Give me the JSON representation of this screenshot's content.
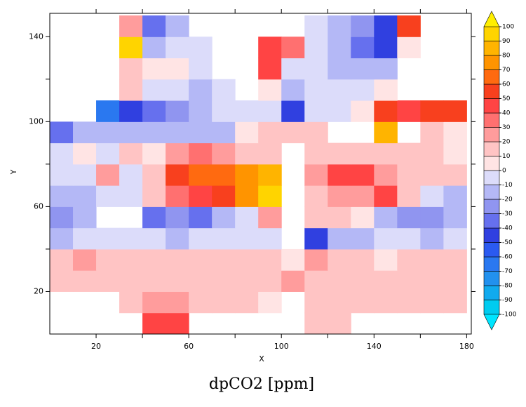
{
  "chart_data": {
    "type": "heatmap",
    "title": "dpCO2 [ppm]",
    "xlabel": "X",
    "ylabel": "Y",
    "xlim": [
      0,
      182
    ],
    "ylim": [
      0,
      151
    ],
    "xticks": [
      20,
      60,
      100,
      140,
      180
    ],
    "xminor_ticks": [
      40,
      80,
      120,
      160
    ],
    "yticks": [
      20,
      60,
      100,
      140
    ],
    "yminor_ticks": [
      40,
      80,
      120
    ],
    "x_edges": [
      0,
      10,
      20,
      30,
      40,
      50,
      60,
      70,
      80,
      90,
      100,
      110,
      120,
      130,
      140,
      150,
      160,
      170,
      180
    ],
    "y_edges": [
      0,
      10,
      20,
      30,
      40,
      50,
      60,
      70,
      80,
      90,
      100,
      110,
      120,
      130,
      140,
      150
    ],
    "values": [
      [
        null,
        null,
        null,
        null,
        40,
        40,
        null,
        null,
        null,
        null,
        null,
        15,
        10,
        null,
        null,
        null,
        null,
        null
      ],
      [
        null,
        null,
        null,
        10,
        20,
        20,
        10,
        15,
        10,
        5,
        null,
        15,
        15,
        10,
        15,
        10,
        10,
        15
      ],
      [
        10,
        10,
        15,
        15,
        10,
        10,
        15,
        10,
        10,
        10,
        20,
        15,
        15,
        10,
        15,
        15,
        10,
        15
      ],
      [
        15,
        20,
        10,
        10,
        15,
        10,
        10,
        10,
        15,
        10,
        5,
        20,
        10,
        10,
        5,
        10,
        10,
        10
      ],
      [
        -15,
        -10,
        -5,
        -5,
        -10,
        -15,
        -10,
        -5,
        -10,
        -10,
        null,
        -50,
        -20,
        -15,
        -10,
        -10,
        -15,
        -10
      ],
      [
        -30,
        -15,
        null,
        null,
        -40,
        -30,
        -35,
        -20,
        -10,
        20,
        null,
        10,
        10,
        5,
        -20,
        -30,
        -25,
        -20
      ],
      [
        -20,
        -15,
        -10,
        -5,
        10,
        30,
        40,
        50,
        70,
        90,
        null,
        10,
        20,
        20,
        40,
        10,
        -10,
        -15
      ],
      [
        -10,
        -10,
        20,
        -5,
        10,
        50,
        60,
        60,
        70,
        80,
        null,
        20,
        40,
        40,
        20,
        10,
        15,
        10
      ],
      [
        -10,
        5,
        -10,
        10,
        5,
        20,
        30,
        20,
        10,
        15,
        null,
        15,
        15,
        15,
        10,
        15,
        10,
        5
      ],
      [
        -40,
        -15,
        -20,
        -20,
        -15,
        -15,
        -20,
        -15,
        5,
        10,
        10,
        10,
        null,
        null,
        80,
        null,
        10,
        5
      ],
      [
        null,
        null,
        -70,
        -50,
        -40,
        -30,
        -15,
        -10,
        -5,
        -5,
        -50,
        -10,
        -10,
        5,
        50,
        45,
        50,
        55
      ],
      [
        null,
        null,
        null,
        10,
        -5,
        -10,
        -15,
        -10,
        null,
        5,
        -15,
        -10,
        -10,
        -10,
        5,
        null,
        null,
        null
      ],
      [
        null,
        null,
        null,
        10,
        5,
        5,
        -5,
        null,
        null,
        40,
        -5,
        -10,
        -15,
        -20,
        -15,
        null,
        null,
        null
      ],
      [
        null,
        null,
        null,
        90,
        -20,
        -10,
        -10,
        null,
        null,
        40,
        30,
        -5,
        -20,
        -40,
        -50,
        5,
        null,
        null
      ],
      [
        null,
        null,
        null,
        20,
        -40,
        -15,
        null,
        null,
        null,
        null,
        null,
        -5,
        -15,
        -25,
        -45,
        50,
        null,
        null
      ]
    ],
    "colorbar": {
      "levels": [
        -100,
        -90,
        -80,
        -70,
        -60,
        -50,
        -40,
        -30,
        -20,
        -10,
        0,
        10,
        20,
        30,
        40,
        50,
        60,
        70,
        80,
        90,
        100
      ],
      "colors": [
        "#00e5ff",
        "#00ccf0",
        "#11aaee",
        "#2291ee",
        "#2a78f0",
        "#2b5af0",
        "#3040e0",
        "#6670ee",
        "#9095f0",
        "#b4b8f6",
        "#dcdcfa",
        "#ffe4e4",
        "#ffc4c4",
        "#ff9c9c",
        "#ff7070",
        "#ff4444",
        "#f8401e",
        "#ff6a10",
        "#ff9400",
        "#ffb400",
        "#ffd400",
        "#ffef00"
      ]
    }
  }
}
